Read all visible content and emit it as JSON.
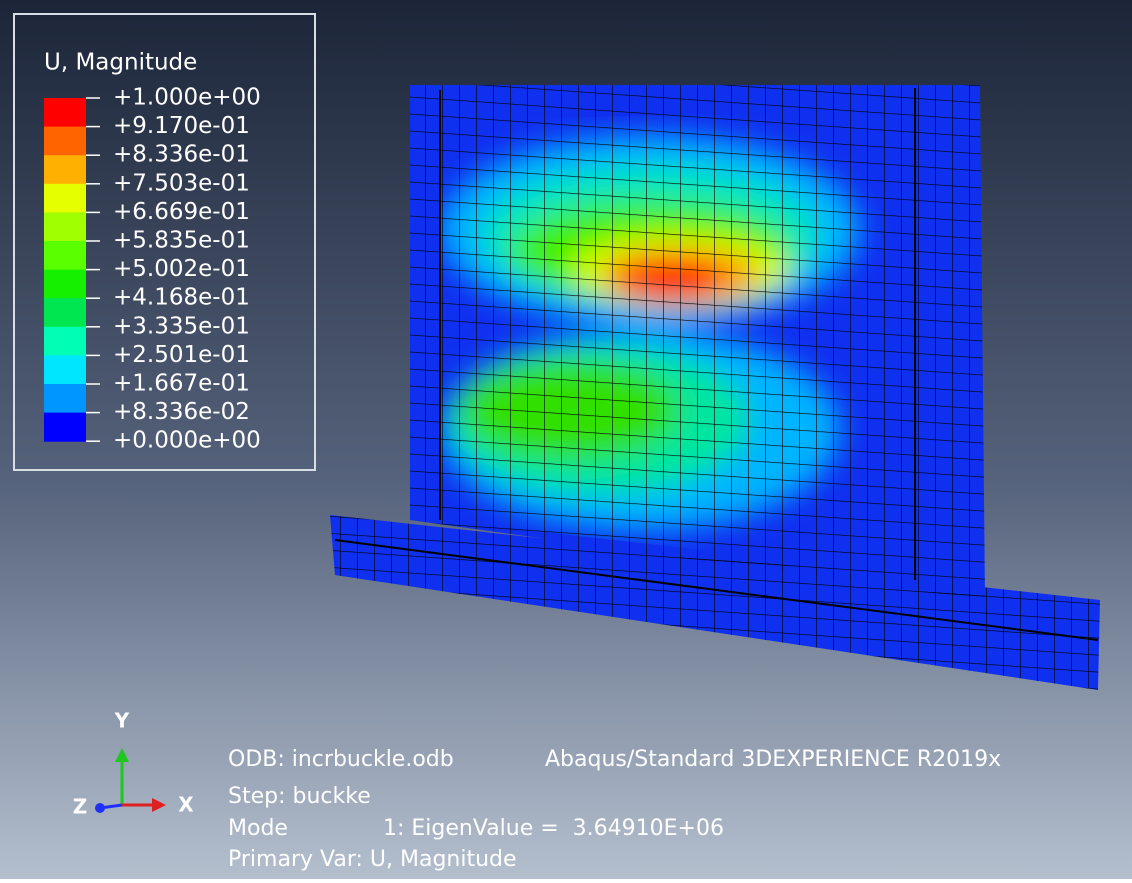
{
  "legend": {
    "title": "U, Magnitude",
    "labels": [
      "+1.000e+00",
      "+9.170e-01",
      "+8.336e-01",
      "+7.503e-01",
      "+6.669e-01",
      "+5.835e-01",
      "+5.002e-01",
      "+4.168e-01",
      "+3.335e-01",
      "+2.501e-01",
      "+1.667e-01",
      "+8.336e-02",
      "+0.000e+00"
    ],
    "colors": [
      "#ff0000",
      "#ff6400",
      "#ffb000",
      "#e6ff00",
      "#a0ff00",
      "#5aff00",
      "#14f000",
      "#00e650",
      "#00ffb4",
      "#00e6ff",
      "#0096ff",
      "#0000ff"
    ]
  },
  "triad": {
    "y": "Y",
    "z": "Z",
    "x": "X"
  },
  "info": {
    "odb": "ODB: incrbuckle.odb",
    "product": "Abaqus/Standard 3DEXPERIENCE R2019x",
    "step": "Step: buckke",
    "mode": "Mode",
    "eigen": "1: EigenValue =  3.64910E+06",
    "primary": "Primary Var: U, Magnitude"
  }
}
